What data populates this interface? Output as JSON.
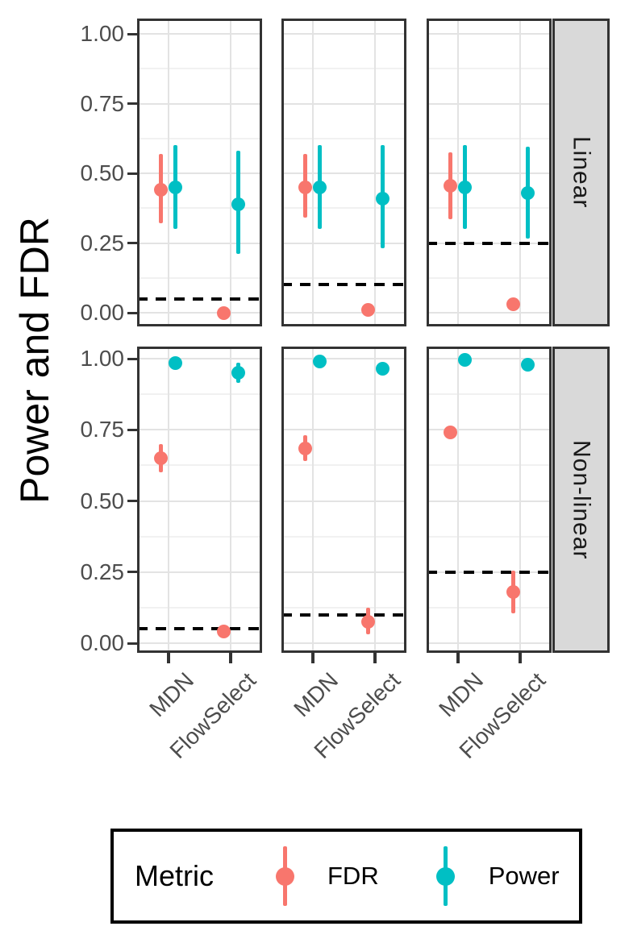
{
  "figure": {
    "y_ticks": [
      "0.00",
      "0.25",
      "0.50",
      "0.75",
      "1.00"
    ],
    "colors": {
      "fdr": "#F8766D",
      "power": "#00BFC4",
      "grid_major": "#E3E3E3",
      "grid_minor": "#F1F1F1",
      "axis_text": "#4D4D4D",
      "panel_border": "#333333",
      "strip_bg": "#D9D9D9",
      "dashed": "#000000"
    }
  },
  "legend": {
    "title": "Metric",
    "entries": [
      {
        "label": "FDR",
        "color_key": "fdr"
      },
      {
        "label": "Power",
        "color_key": "power"
      }
    ]
  },
  "chart_data": {
    "type": "pointrange",
    "ylabel": "Power and FDR",
    "ylim": [
      0,
      1
    ],
    "y_major_ticks": [
      0,
      0.25,
      0.5,
      0.75,
      1.0
    ],
    "y_minor_ticks": [
      0.125,
      0.375,
      0.625,
      0.875
    ],
    "categories": [
      "MDN",
      "FlowSelect"
    ],
    "facet_row_labels": [
      "Linear",
      "Non-linear"
    ],
    "facet_col_targets": [
      0.05,
      0.1,
      0.25
    ],
    "legend_position": "bottom",
    "grid": true,
    "panels": [
      {
        "row": "Linear",
        "col": 0,
        "target": 0.05,
        "points": [
          {
            "x": "MDN",
            "metric": "FDR",
            "y": 0.44,
            "ymin": 0.32,
            "ymax": 0.57
          },
          {
            "x": "MDN",
            "metric": "Power",
            "y": 0.45,
            "ymin": 0.3,
            "ymax": 0.6
          },
          {
            "x": "FlowSelect",
            "metric": "FDR",
            "y": 0.0,
            "ymin": 0.0,
            "ymax": 0.0
          },
          {
            "x": "FlowSelect",
            "metric": "Power",
            "y": 0.39,
            "ymin": 0.21,
            "ymax": 0.58
          }
        ]
      },
      {
        "row": "Linear",
        "col": 1,
        "target": 0.1,
        "points": [
          {
            "x": "MDN",
            "metric": "FDR",
            "y": 0.45,
            "ymin": 0.34,
            "ymax": 0.57
          },
          {
            "x": "MDN",
            "metric": "Power",
            "y": 0.45,
            "ymin": 0.3,
            "ymax": 0.6
          },
          {
            "x": "FlowSelect",
            "metric": "FDR",
            "y": 0.01,
            "ymin": 0.01,
            "ymax": 0.01
          },
          {
            "x": "FlowSelect",
            "metric": "Power",
            "y": 0.41,
            "ymin": 0.23,
            "ymax": 0.6
          }
        ]
      },
      {
        "row": "Linear",
        "col": 2,
        "target": 0.25,
        "points": [
          {
            "x": "MDN",
            "metric": "FDR",
            "y": 0.455,
            "ymin": 0.335,
            "ymax": 0.575
          },
          {
            "x": "MDN",
            "metric": "Power",
            "y": 0.45,
            "ymin": 0.3,
            "ymax": 0.6
          },
          {
            "x": "FlowSelect",
            "metric": "FDR",
            "y": 0.03,
            "ymin": 0.03,
            "ymax": 0.03
          },
          {
            "x": "FlowSelect",
            "metric": "Power",
            "y": 0.43,
            "ymin": 0.265,
            "ymax": 0.595
          }
        ]
      },
      {
        "row": "Non-linear",
        "col": 0,
        "target": 0.05,
        "points": [
          {
            "x": "MDN",
            "metric": "FDR",
            "y": 0.65,
            "ymin": 0.6,
            "ymax": 0.7
          },
          {
            "x": "MDN",
            "metric": "Power",
            "y": 0.985,
            "ymin": 0.978,
            "ymax": 0.992
          },
          {
            "x": "FlowSelect",
            "metric": "FDR",
            "y": 0.042,
            "ymin": 0.03,
            "ymax": 0.055
          },
          {
            "x": "FlowSelect",
            "metric": "Power",
            "y": 0.95,
            "ymin": 0.915,
            "ymax": 0.985
          }
        ]
      },
      {
        "row": "Non-linear",
        "col": 1,
        "target": 0.1,
        "points": [
          {
            "x": "MDN",
            "metric": "FDR",
            "y": 0.685,
            "ymin": 0.64,
            "ymax": 0.73
          },
          {
            "x": "MDN",
            "metric": "Power",
            "y": 0.99,
            "ymin": 0.985,
            "ymax": 0.995
          },
          {
            "x": "FlowSelect",
            "metric": "FDR",
            "y": 0.075,
            "ymin": 0.03,
            "ymax": 0.125
          },
          {
            "x": "FlowSelect",
            "metric": "Power",
            "y": 0.965,
            "ymin": 0.955,
            "ymax": 0.975
          }
        ]
      },
      {
        "row": "Non-linear",
        "col": 2,
        "target": 0.25,
        "points": [
          {
            "x": "MDN",
            "metric": "FDR",
            "y": 0.74,
            "ymin": 0.735,
            "ymax": 0.745
          },
          {
            "x": "MDN",
            "metric": "Power",
            "y": 0.995,
            "ymin": 0.99,
            "ymax": 1.0
          },
          {
            "x": "FlowSelect",
            "metric": "FDR",
            "y": 0.18,
            "ymin": 0.105,
            "ymax": 0.255
          },
          {
            "x": "FlowSelect",
            "metric": "Power",
            "y": 0.98,
            "ymin": 0.972,
            "ymax": 0.988
          }
        ]
      }
    ]
  }
}
